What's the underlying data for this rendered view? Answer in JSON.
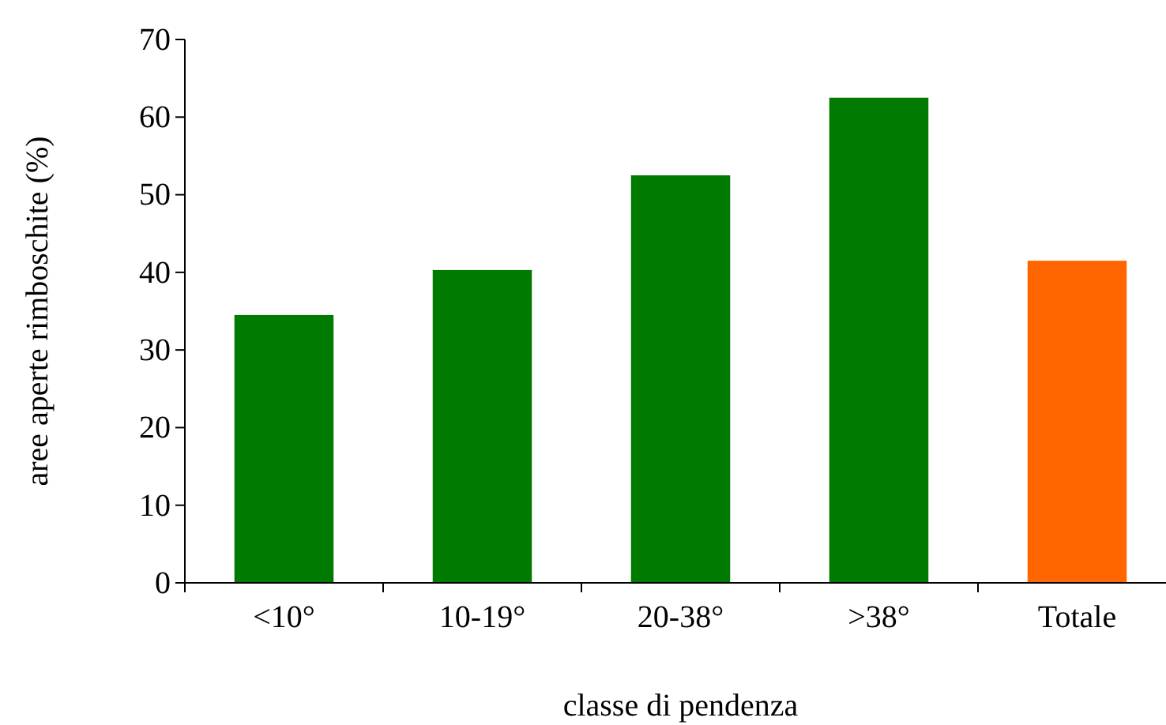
{
  "chart_data": {
    "type": "bar",
    "xlabel": "classe di pendenza",
    "ylabel": "aree aperte rimboschite (%)",
    "categories": [
      "<10°",
      "10-19°",
      "20-38°",
      ">38°",
      "Totale"
    ],
    "values": [
      34.5,
      40.3,
      52.5,
      62.5,
      41.5
    ],
    "colors": [
      "#007a00",
      "#007a00",
      "#007a00",
      "#007a00",
      "#ff6600"
    ],
    "ylim": [
      0,
      70
    ],
    "yticks": [
      0,
      10,
      20,
      30,
      40,
      50,
      60,
      70
    ],
    "grid": false
  }
}
